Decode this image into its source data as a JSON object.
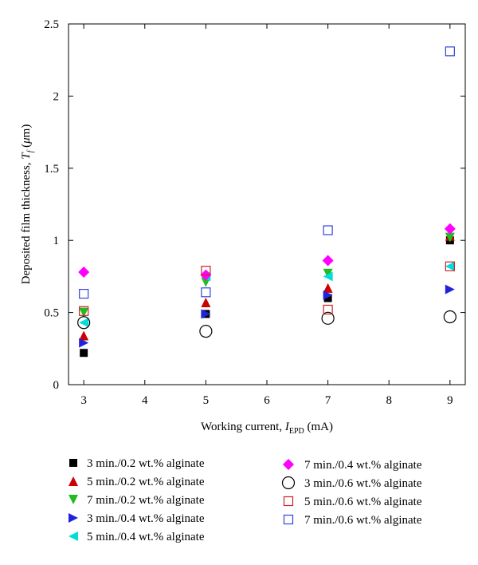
{
  "chart_data": {
    "type": "scatter",
    "title": "",
    "xlabel": {
      "main": "Working current, ",
      "var": "I",
      "sub": "EPD",
      "unit": " (mA)"
    },
    "ylabel": {
      "main": "Deposited film thickness, ",
      "var": "T",
      "sub": "f",
      "unit_pre": " (",
      "unit_mu": "μ",
      "unit_post": "m)"
    },
    "xlim": [
      2.75,
      9.25
    ],
    "ylim": [
      0,
      2.5
    ],
    "xticks": [
      "3",
      "4",
      "5",
      "6",
      "7",
      "8",
      "9"
    ],
    "yticks": [
      "0",
      "0.5",
      "1",
      "1.5",
      "2",
      "2.5"
    ],
    "grid": false,
    "legend_position": "bottom",
    "series": [
      {
        "name": "3 min./0.2 wt.% alginate",
        "marker": "square-filled",
        "color": "#000000",
        "x": [
          3,
          5,
          7,
          9
        ],
        "y": [
          0.22,
          0.49,
          0.6,
          1.0
        ]
      },
      {
        "name": "5 min./0.2 wt.% alginate",
        "marker": "triangle-up",
        "color": "#cc0000",
        "x": [
          3,
          5,
          7,
          9
        ],
        "y": [
          0.34,
          0.57,
          0.67,
          1.03
        ]
      },
      {
        "name": "7 min./0.2 wt.% alginate",
        "marker": "triangle-down",
        "color": "#22bb22",
        "x": [
          3,
          5,
          7,
          9
        ],
        "y": [
          0.5,
          0.71,
          0.77,
          1.02
        ]
      },
      {
        "name": "3 min./0.4 wt.% alginate",
        "marker": "triangle-right",
        "color": "#2222dd",
        "x": [
          3,
          5,
          7,
          9
        ],
        "y": [
          0.29,
          0.49,
          0.62,
          0.66
        ]
      },
      {
        "name": "5 min./0.4 wt.% alginate",
        "marker": "triangle-left",
        "color": "#00dddd",
        "x": [
          3,
          5,
          7,
          9
        ],
        "y": [
          0.43,
          0.75,
          0.75,
          0.82
        ]
      },
      {
        "name": "7 min./0.4 wt.% alginate",
        "marker": "diamond",
        "color": "#ff00ff",
        "x": [
          3,
          5,
          7,
          9
        ],
        "y": [
          0.78,
          0.76,
          0.86,
          1.08
        ]
      },
      {
        "name": "3 min./0.6 wt.% alginate",
        "marker": "circle-open",
        "color": "#000000",
        "x": [
          3,
          5,
          7,
          9
        ],
        "y": [
          0.43,
          0.37,
          0.46,
          0.47
        ]
      },
      {
        "name": "5 min./0.6 wt.% alginate",
        "marker": "square-open",
        "color": "#cc2222",
        "x": [
          3,
          5,
          7,
          9
        ],
        "y": [
          0.51,
          0.79,
          0.52,
          0.82
        ]
      },
      {
        "name": "7 min./0.6 wt.% alginate",
        "marker": "square-open",
        "color": "#3344dd",
        "x": [
          3,
          5,
          7,
          9
        ],
        "y": [
          0.63,
          0.64,
          1.07,
          2.31
        ]
      }
    ]
  }
}
